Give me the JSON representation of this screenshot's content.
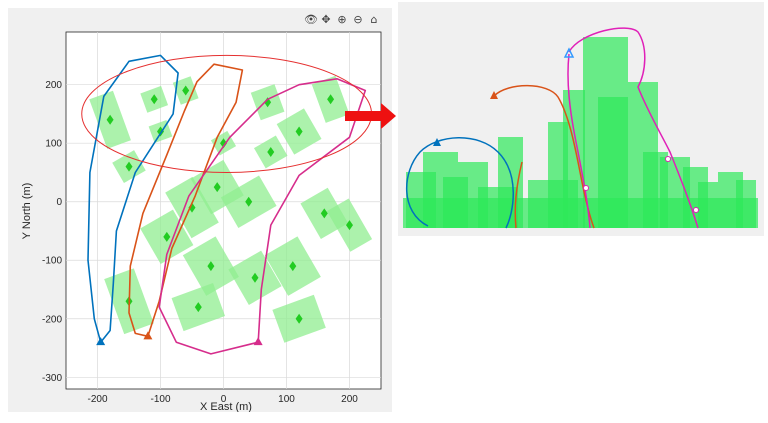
{
  "toolbar": {
    "icons": [
      {
        "name": "data-tips-icon",
        "glyph": "👁"
      },
      {
        "name": "pan-icon",
        "glyph": "✥"
      },
      {
        "name": "zoom-in-icon",
        "glyph": "⊕"
      },
      {
        "name": "zoom-out-icon",
        "glyph": "⊖"
      },
      {
        "name": "home-icon",
        "glyph": "⌂"
      }
    ]
  },
  "colors": {
    "building": "#90ee90",
    "building_marker": "#22cc22",
    "highlight_ellipse": "#e53030",
    "arrow": "#ee1111",
    "grid": "#d9d9d9",
    "plot_bg": "#ffffff"
  },
  "chart_data": [
    {
      "type": "line",
      "title": "",
      "xlabel": "X East (m)",
      "ylabel": "Y North (m)",
      "xlim": [
        -250,
        250
      ],
      "ylim": [
        -320,
        290
      ],
      "xticks": [
        -200,
        -100,
        0,
        100,
        200
      ],
      "yticks": [
        -300,
        -200,
        -100,
        0,
        100,
        200
      ],
      "xtick_labels": [
        "-200",
        "-100",
        "0",
        "100",
        "200"
      ],
      "ytick_labels": [
        "-300",
        "-200",
        "-100",
        "0",
        "100",
        "200"
      ],
      "grid": true,
      "series": [
        {
          "color": "#0072bd",
          "start": [
            -195,
            -240
          ],
          "points": [
            [
              -195,
              -240
            ],
            [
              -205,
              -200
            ],
            [
              -215,
              -100
            ],
            [
              -212,
              50
            ],
            [
              -190,
              180
            ],
            [
              -150,
              240
            ],
            [
              -100,
              250
            ],
            [
              -72,
              220
            ],
            [
              -80,
              150
            ],
            [
              -110,
              100
            ],
            [
              -140,
              50
            ],
            [
              -170,
              -50
            ],
            [
              -175,
              -140
            ],
            [
              -180,
              -220
            ],
            [
              -195,
              -240
            ]
          ]
        },
        {
          "color": "#d95319",
          "start": [
            -120,
            -230
          ],
          "points": [
            [
              -120,
              -230
            ],
            [
              -140,
              -225
            ],
            [
              -150,
              -190
            ],
            [
              -148,
              -110
            ],
            [
              -128,
              -20
            ],
            [
              -90,
              80
            ],
            [
              -62,
              155
            ],
            [
              -42,
              205
            ],
            [
              -15,
              235
            ],
            [
              30,
              225
            ],
            [
              20,
              170
            ],
            [
              -10,
              110
            ],
            [
              -45,
              10
            ],
            [
              -82,
              -80
            ],
            [
              -102,
              -170
            ],
            [
              -120,
              -230
            ]
          ]
        },
        {
          "color": "#d62d8c",
          "start": [
            55,
            -240
          ],
          "points": [
            [
              55,
              -240
            ],
            [
              -20,
              -260
            ],
            [
              -75,
              -240
            ],
            [
              -102,
              -180
            ],
            [
              -90,
              -90
            ],
            [
              -55,
              10
            ],
            [
              10,
              110
            ],
            [
              70,
              175
            ],
            [
              120,
              200
            ],
            [
              180,
              210
            ],
            [
              225,
              190
            ],
            [
              200,
              110
            ],
            [
              120,
              45
            ],
            [
              75,
              -40
            ],
            [
              60,
              -150
            ],
            [
              55,
              -240
            ]
          ]
        }
      ],
      "markers": [
        {
          "color": "#0072bd",
          "x": -195,
          "y": -240
        },
        {
          "color": "#d95319",
          "x": -120,
          "y": -230
        },
        {
          "color": "#d62d8c",
          "x": 55,
          "y": -240
        }
      ],
      "highlight_ellipse": {
        "cx": 5,
        "cy": 150,
        "rx": 230,
        "ry": 100
      }
    }
  ]
}
